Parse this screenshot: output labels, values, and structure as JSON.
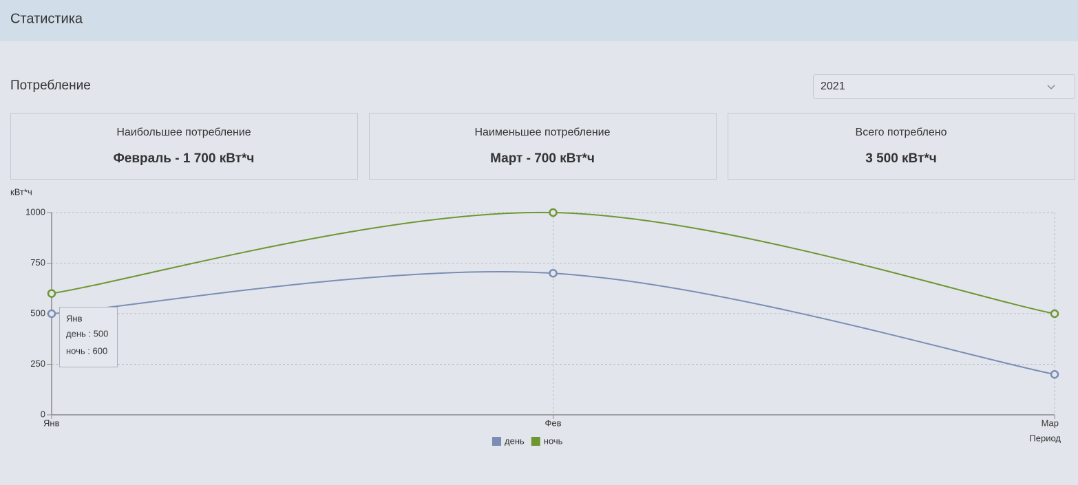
{
  "header": {
    "title": "Статистика"
  },
  "section": {
    "title": "Потребление",
    "year_select": "2021"
  },
  "cards": [
    {
      "label": "Наибольшее потребление",
      "value": "Февраль - 1 700 кВт*ч"
    },
    {
      "label": "Наименьшее потребление",
      "value": "Март - 700 кВт*ч"
    },
    {
      "label": "Всего потреблено",
      "value": "3 500 кВт*ч"
    }
  ],
  "chart_data": {
    "type": "line",
    "ylabel": "кВт*ч",
    "xlabel": "Период",
    "categories": [
      "Янв",
      "Фев",
      "Мар"
    ],
    "series": [
      {
        "name": "день",
        "color": "#7b8db5",
        "values": [
          500,
          700,
          200
        ]
      },
      {
        "name": "ночь",
        "color": "#6e9631",
        "values": [
          600,
          1000,
          500
        ]
      }
    ],
    "ylim": [
      0,
      1000
    ],
    "yticks": [
      0,
      250,
      500,
      750,
      1000
    ],
    "grid": true,
    "legend": "bottom",
    "tooltip": {
      "title": "Янв",
      "lines": [
        "день : 500",
        "ночь : 600"
      ]
    }
  }
}
